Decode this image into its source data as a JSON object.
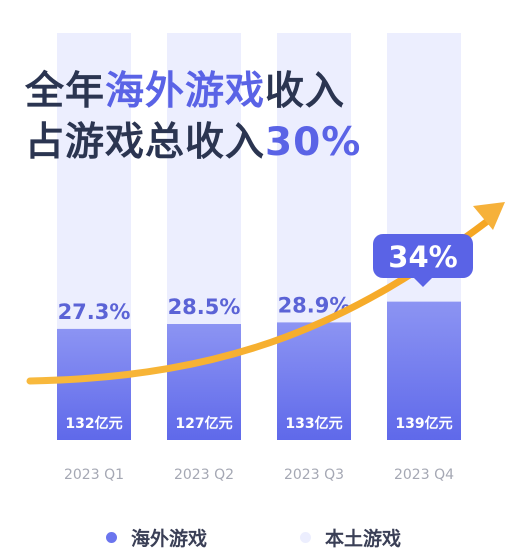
{
  "headline": {
    "line1_prefix": "全年",
    "line1_accent": "海外游戏",
    "line1_suffix": "收入",
    "line2_prefix": "占游戏总收入",
    "line2_accent": "30%"
  },
  "chart_data": {
    "type": "bar",
    "stacked": true,
    "categories": [
      "2023 Q1",
      "2023 Q2",
      "2023 Q3",
      "2023 Q4"
    ],
    "share_labels": [
      "27.3%",
      "28.5%",
      "28.9%",
      "34%"
    ],
    "share_values": [
      27.3,
      28.5,
      28.9,
      34
    ],
    "revenue_labels": [
      "132亿元",
      "127亿元",
      "133亿元",
      "139亿元"
    ],
    "revenue_values": [
      132,
      127,
      133,
      139
    ],
    "series": [
      {
        "name": "海外游戏",
        "values": [
          27.3,
          28.5,
          28.9,
          34
        ],
        "color": "#6b75ee"
      },
      {
        "name": "本土游戏",
        "values": [
          72.7,
          71.5,
          71.1,
          66
        ],
        "color": "#eceefe"
      }
    ],
    "ylim": [
      0,
      100
    ],
    "highlight_index": 3,
    "trend_arrow": true,
    "legend_position": "bottom",
    "colors": {
      "overseas": "#6b75ee",
      "domestic": "#eceefe",
      "highlight_badge": "#5a63e6",
      "share_text": "#5b63d6",
      "arrow": "#f6b13a"
    }
  },
  "legend": {
    "overseas_label": "海外游戏",
    "domestic_label": "本土游戏"
  }
}
